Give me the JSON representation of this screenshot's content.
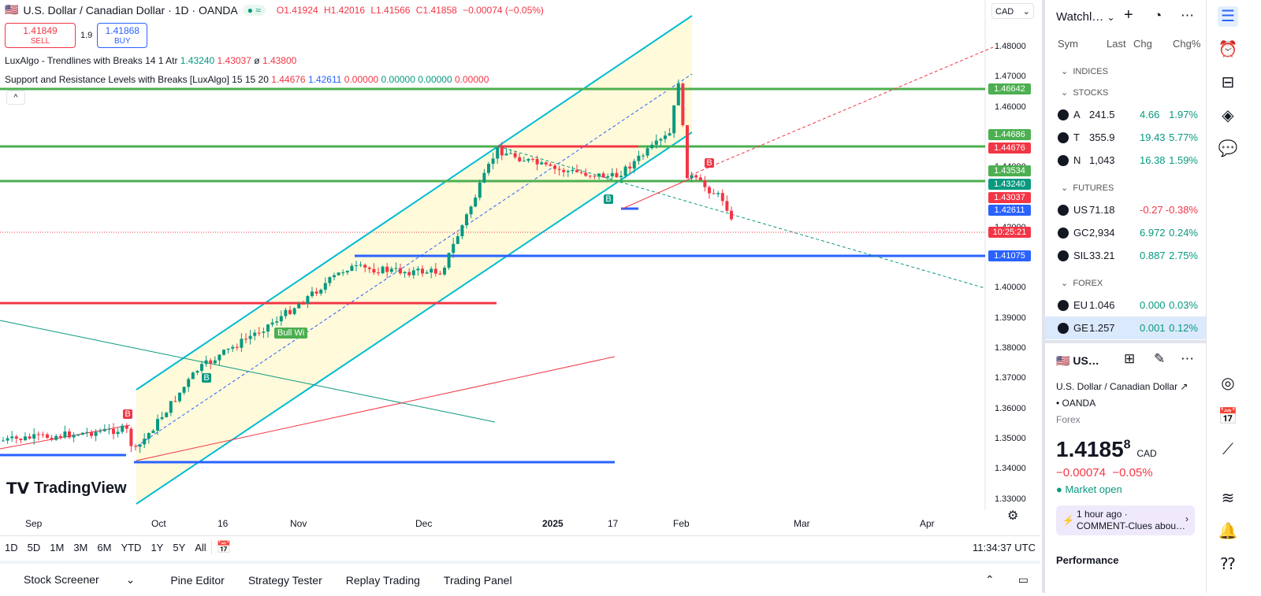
{
  "header": {
    "symbol_title": "U.S. Dollar / Canadian Dollar · 1D · OANDA",
    "ohlc": {
      "o": "O1.41924",
      "h": "H1.42016",
      "l": "L1.41566",
      "c": "C1.41858",
      "chg": "−0.00074 (−0.05%)"
    },
    "currency_select": "CAD"
  },
  "trade": {
    "sell_price": "1.41849",
    "sell_label": "SELL",
    "spread": "1.9",
    "buy_price": "1.41868",
    "buy_label": "BUY"
  },
  "indicators": {
    "ind1_name": "LuxAlgo - Trendlines with Breaks 14 1 Atr",
    "ind1_v1": "1.43240",
    "ind1_v2": "1.43037",
    "ind1_v3": "ø",
    "ind1_v4": "1.43800",
    "ind2_name": "Support and Resistance Levels with Breaks [LuxAlgo] 15 15 20",
    "ind2_v1": "1.44676",
    "ind2_v2": "1.42611",
    "ind2_v3": "0.00000",
    "ind2_v4": "0.00000",
    "ind2_v5": "0.00000",
    "ind2_v6": "0.00000"
  },
  "chart_data": {
    "type": "candlestick",
    "y_ticks": [
      "1.48000",
      "1.47000",
      "1.46000",
      "1.45000",
      "1.44000",
      "1.43000",
      "1.42000",
      "1.41000",
      "1.40000",
      "1.39000",
      "1.38000",
      "1.37000",
      "1.36000",
      "1.35000",
      "1.34000",
      "1.33000"
    ],
    "x_ticks": [
      "Sep",
      "Oct",
      "16",
      "Nov",
      "Dec",
      "2025",
      "17",
      "Feb",
      "Mar",
      "Apr"
    ],
    "price_tags": [
      {
        "label": "1.46642",
        "color": "#4caf50"
      },
      {
        "label": "1.44686",
        "color": "#4caf50"
      },
      {
        "label": "1.44676",
        "color": "#f23645"
      },
      {
        "label": "1.43534",
        "color": "#4caf50"
      },
      {
        "label": "1.43240",
        "color": "#089981"
      },
      {
        "label": "1.43037",
        "color": "#f23645"
      },
      {
        "label": "1.42611",
        "color": "#2962ff"
      },
      {
        "label": "10:25:21",
        "color": "#f23645"
      },
      {
        "label": "1.41075",
        "color": "#2962ff"
      }
    ],
    "labels": [
      "Bull Wi",
      "B",
      "B",
      "B",
      "B"
    ],
    "watermark": "TradingView"
  },
  "rangebar": {
    "items": [
      "1D",
      "5D",
      "1M",
      "3M",
      "6M",
      "YTD",
      "1Y",
      "5Y",
      "All"
    ],
    "clock": "11:34:37 UTC"
  },
  "tabs": [
    "Stock Screener",
    "Pine Editor",
    "Strategy Tester",
    "Replay Trading",
    "Trading Panel"
  ],
  "watchlist": {
    "title": "Watchl…",
    "cols": [
      "Sym",
      "Last",
      "Chg",
      "Chg%"
    ],
    "sections": {
      "indices": "INDICES",
      "stocks": "STOCKS",
      "futures": "FUTURES",
      "forex": "FOREX"
    },
    "rows": [
      {
        "sym": "A",
        "last": "241.5",
        "chg": "4.66",
        "pct": "1.97%",
        "color": "#089981"
      },
      {
        "sym": "T",
        "last": "355.9",
        "chg": "19.43",
        "pct": "5.77%",
        "color": "#089981"
      },
      {
        "sym": "N",
        "last": "1,043",
        "chg": "16.38",
        "pct": "1.59%",
        "color": "#089981"
      },
      {
        "sym": "US",
        "last": "71.18",
        "chg": "-0.27",
        "pct": "-0.38%",
        "color": "#f23645"
      },
      {
        "sym": "GC",
        "last": "2,934",
        "chg": "6.972",
        "pct": "0.24%",
        "color": "#089981"
      },
      {
        "sym": "SIL",
        "last": "33.21",
        "chg": "0.887",
        "pct": "2.75%",
        "color": "#089981"
      },
      {
        "sym": "EU",
        "last": "1.046",
        "chg": "0.000",
        "pct": "0.03%",
        "color": "#089981"
      },
      {
        "sym": "GE",
        "last": "1.257",
        "chg": "0.001",
        "pct": "0.12%",
        "color": "#089981"
      }
    ]
  },
  "details": {
    "short": "US…",
    "name": "U.S. Dollar / Canadian Dollar",
    "broker": "OANDA",
    "type": "Forex",
    "price": "1.4185",
    "price_sup": "8",
    "ccy": "CAD",
    "chg": "−0.00074",
    "chg_pct": "−0.05%",
    "market": "Market open",
    "news_time": "1 hour ago ·",
    "news_text": "COMMENT-Clues abou…",
    "performance": "Performance"
  }
}
